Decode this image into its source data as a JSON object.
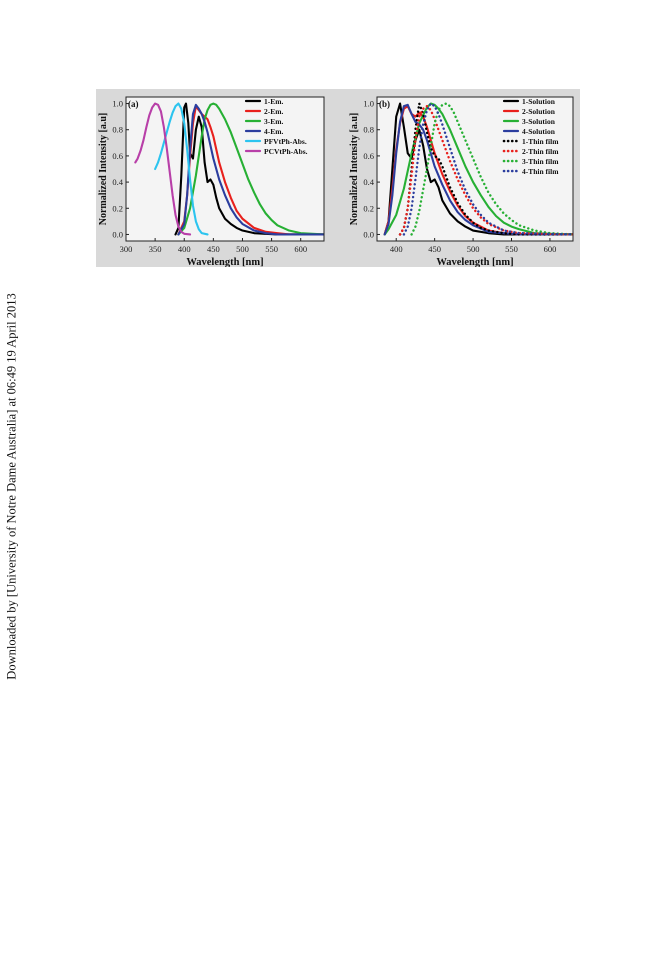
{
  "watermark_text": "Downloaded by [University of Notre Dame Australia] at 06:49 19 April 2013",
  "chart_data": [
    {
      "type": "line",
      "panel_label": "(a)",
      "xlabel": "Wavelength [nm]",
      "ylabel": "Normalized Intensity [a.u]",
      "xlim": [
        300,
        640
      ],
      "ylim": [
        -0.05,
        1.05
      ],
      "xticks": [
        300,
        350,
        400,
        450,
        500,
        550,
        600
      ],
      "yticks": [
        0.0,
        0.2,
        0.4,
        0.6,
        0.8,
        1.0
      ],
      "legend_position": "top-right",
      "series": [
        {
          "name": "1-Em.",
          "color": "#000000",
          "dash": "solid",
          "x": [
            385,
            390,
            395,
            400,
            403,
            407,
            410,
            415,
            420,
            425,
            430,
            435,
            440,
            445,
            450,
            455,
            460,
            470,
            480,
            490,
            500,
            520,
            540,
            560,
            580,
            600,
            640
          ],
          "y": [
            0,
            0.05,
            0.45,
            0.97,
            1.0,
            0.85,
            0.62,
            0.58,
            0.8,
            0.9,
            0.82,
            0.55,
            0.4,
            0.42,
            0.38,
            0.28,
            0.2,
            0.12,
            0.08,
            0.05,
            0.03,
            0.01,
            0.005,
            0,
            0,
            0,
            0
          ]
        },
        {
          "name": "2-Em.",
          "color": "#e8201c",
          "dash": "solid",
          "x": [
            390,
            400,
            405,
            410,
            415,
            420,
            425,
            430,
            435,
            440,
            445,
            450,
            460,
            470,
            480,
            490,
            500,
            520,
            540,
            560,
            580,
            600,
            640
          ],
          "y": [
            0,
            0.1,
            0.3,
            0.6,
            0.85,
            0.98,
            0.95,
            0.92,
            0.9,
            0.88,
            0.82,
            0.75,
            0.55,
            0.4,
            0.28,
            0.18,
            0.12,
            0.05,
            0.02,
            0.01,
            0,
            0,
            0
          ]
        },
        {
          "name": "3-Em.",
          "color": "#27b034",
          "dash": "solid",
          "x": [
            390,
            400,
            410,
            420,
            430,
            435,
            440,
            445,
            450,
            455,
            460,
            470,
            480,
            490,
            500,
            510,
            520,
            530,
            540,
            550,
            560,
            580,
            600,
            620,
            640
          ],
          "y": [
            0,
            0.05,
            0.2,
            0.45,
            0.75,
            0.88,
            0.95,
            0.99,
            1.0,
            0.99,
            0.96,
            0.88,
            0.78,
            0.66,
            0.54,
            0.42,
            0.32,
            0.23,
            0.16,
            0.11,
            0.07,
            0.03,
            0.01,
            0.005,
            0
          ]
        },
        {
          "name": "4-Em.",
          "color": "#2b3d9e",
          "dash": "solid",
          "x": [
            390,
            400,
            405,
            410,
            415,
            420,
            425,
            430,
            435,
            440,
            445,
            450,
            460,
            470,
            480,
            490,
            500,
            520,
            540,
            560,
            580,
            600,
            640
          ],
          "y": [
            0,
            0.08,
            0.3,
            0.65,
            0.92,
            0.99,
            0.96,
            0.92,
            0.86,
            0.78,
            0.68,
            0.58,
            0.42,
            0.3,
            0.2,
            0.13,
            0.08,
            0.03,
            0.01,
            0,
            0,
            0,
            0
          ]
        },
        {
          "name": "PFVtPh-Abs.",
          "color": "#2cc4ef",
          "dash": "solid",
          "x": [
            350,
            355,
            360,
            365,
            370,
            375,
            380,
            385,
            390,
            395,
            400,
            405,
            410,
            415,
            420,
            425,
            430,
            440
          ],
          "y": [
            0.5,
            0.55,
            0.62,
            0.7,
            0.78,
            0.86,
            0.93,
            0.98,
            1.0,
            0.96,
            0.85,
            0.65,
            0.42,
            0.22,
            0.1,
            0.04,
            0.01,
            0
          ]
        },
        {
          "name": "PCVtPh-Abs.",
          "color": "#b83fa8",
          "dash": "solid",
          "x": [
            316,
            320,
            325,
            330,
            335,
            340,
            345,
            350,
            355,
            360,
            365,
            370,
            375,
            380,
            385,
            390,
            395,
            400,
            410
          ],
          "y": [
            0.55,
            0.58,
            0.64,
            0.72,
            0.82,
            0.91,
            0.97,
            1.0,
            0.99,
            0.94,
            0.82,
            0.66,
            0.48,
            0.3,
            0.15,
            0.06,
            0.02,
            0.005,
            0
          ]
        }
      ]
    },
    {
      "type": "line",
      "panel_label": "(b)",
      "xlabel": "Wavelength [nm]",
      "ylabel": "Normalized Intensity [a.u]",
      "xlim": [
        375,
        630
      ],
      "ylim": [
        -0.05,
        1.05
      ],
      "xticks": [
        400,
        450,
        500,
        550,
        600
      ],
      "yticks": [
        0.0,
        0.2,
        0.4,
        0.6,
        0.8,
        1.0
      ],
      "legend_position": "top-right",
      "series": [
        {
          "name": "1-Solution",
          "color": "#000000",
          "dash": "solid",
          "x": [
            385,
            390,
            395,
            400,
            405,
            410,
            415,
            420,
            425,
            430,
            435,
            440,
            445,
            450,
            455,
            460,
            470,
            480,
            490,
            500,
            520,
            540,
            560,
            580,
            600,
            630
          ],
          "y": [
            0,
            0.1,
            0.5,
            0.9,
            1.0,
            0.82,
            0.62,
            0.58,
            0.72,
            0.8,
            0.68,
            0.5,
            0.4,
            0.42,
            0.36,
            0.26,
            0.16,
            0.1,
            0.06,
            0.03,
            0.01,
            0,
            0,
            0,
            0,
            0
          ]
        },
        {
          "name": "2-Solution",
          "color": "#e8201c",
          "dash": "solid",
          "x": [
            385,
            390,
            395,
            400,
            405,
            410,
            415,
            420,
            425,
            430,
            435,
            440,
            445,
            450,
            460,
            470,
            480,
            490,
            500,
            520,
            540,
            560,
            580,
            600,
            630
          ],
          "y": [
            0,
            0.1,
            0.35,
            0.65,
            0.85,
            0.96,
            0.98,
            0.92,
            0.9,
            0.93,
            0.9,
            0.82,
            0.72,
            0.62,
            0.46,
            0.33,
            0.22,
            0.14,
            0.09,
            0.03,
            0.01,
            0,
            0,
            0,
            0
          ]
        },
        {
          "name": "3-Solution",
          "color": "#27b034",
          "dash": "solid",
          "x": [
            385,
            390,
            400,
            410,
            420,
            430,
            440,
            445,
            450,
            455,
            460,
            470,
            480,
            490,
            500,
            510,
            520,
            530,
            540,
            550,
            560,
            580,
            600,
            630
          ],
          "y": [
            0,
            0.04,
            0.15,
            0.35,
            0.62,
            0.85,
            0.97,
            1.0,
            0.99,
            0.96,
            0.92,
            0.8,
            0.66,
            0.52,
            0.4,
            0.3,
            0.21,
            0.14,
            0.09,
            0.06,
            0.04,
            0.01,
            0.005,
            0
          ]
        },
        {
          "name": "4-Solution",
          "color": "#2b3d9e",
          "dash": "solid",
          "x": [
            385,
            390,
            395,
            400,
            405,
            410,
            415,
            420,
            425,
            430,
            435,
            440,
            445,
            450,
            460,
            470,
            480,
            490,
            500,
            520,
            540,
            560,
            630
          ],
          "y": [
            0,
            0.08,
            0.3,
            0.62,
            0.86,
            0.98,
            0.99,
            0.92,
            0.86,
            0.84,
            0.8,
            0.72,
            0.62,
            0.52,
            0.38,
            0.26,
            0.17,
            0.11,
            0.07,
            0.02,
            0.01,
            0,
            0
          ]
        },
        {
          "name": "1-Thin film",
          "color": "#000000",
          "dash": "dotted",
          "x": [
            405,
            410,
            415,
            420,
            425,
            430,
            435,
            440,
            445,
            450,
            455,
            460,
            465,
            470,
            480,
            490,
            500,
            510,
            520,
            540,
            560,
            630
          ],
          "y": [
            0,
            0.05,
            0.2,
            0.5,
            0.8,
            1.0,
            0.92,
            0.78,
            0.66,
            0.6,
            0.58,
            0.52,
            0.44,
            0.36,
            0.24,
            0.15,
            0.09,
            0.05,
            0.03,
            0.01,
            0,
            0
          ]
        },
        {
          "name": "2-Thin film",
          "color": "#e8201c",
          "dash": "dotted",
          "x": [
            405,
            410,
            415,
            420,
            425,
            430,
            435,
            440,
            445,
            450,
            455,
            460,
            470,
            480,
            490,
            500,
            510,
            520,
            540,
            560,
            630
          ],
          "y": [
            0,
            0.05,
            0.2,
            0.45,
            0.72,
            0.9,
            0.96,
            0.98,
            0.95,
            0.88,
            0.8,
            0.72,
            0.56,
            0.42,
            0.3,
            0.2,
            0.13,
            0.08,
            0.03,
            0.01,
            0
          ]
        },
        {
          "name": "3-Thin film",
          "color": "#27b034",
          "dash": "dotted",
          "x": [
            420,
            425,
            430,
            440,
            450,
            455,
            460,
            465,
            470,
            475,
            480,
            490,
            500,
            510,
            520,
            530,
            540,
            550,
            560,
            580,
            600,
            630
          ],
          "y": [
            0,
            0.06,
            0.18,
            0.5,
            0.85,
            0.95,
            0.99,
            1.0,
            0.98,
            0.93,
            0.86,
            0.72,
            0.58,
            0.44,
            0.32,
            0.23,
            0.16,
            0.11,
            0.07,
            0.03,
            0.01,
            0
          ]
        },
        {
          "name": "4-Thin film",
          "color": "#2b3d9e",
          "dash": "dotted",
          "x": [
            410,
            415,
            420,
            425,
            430,
            435,
            440,
            445,
            450,
            455,
            460,
            470,
            480,
            490,
            500,
            510,
            520,
            540,
            560,
            630
          ],
          "y": [
            0,
            0.06,
            0.2,
            0.42,
            0.66,
            0.84,
            0.95,
            1.0,
            0.98,
            0.92,
            0.84,
            0.66,
            0.48,
            0.34,
            0.23,
            0.15,
            0.09,
            0.03,
            0.01,
            0
          ]
        }
      ]
    }
  ]
}
